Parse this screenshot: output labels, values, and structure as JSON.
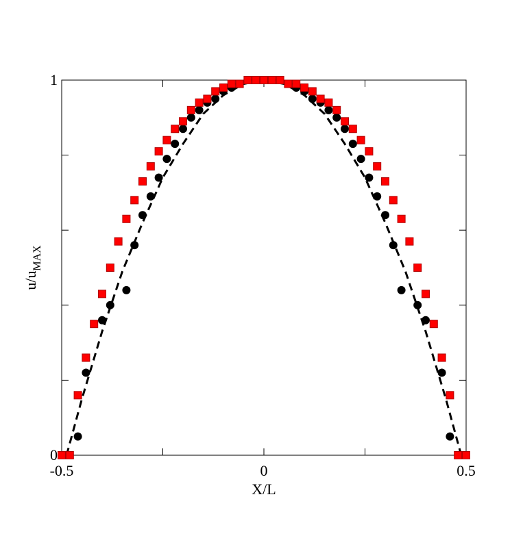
{
  "chart_data": {
    "type": "scatter",
    "xlabel": "X/L",
    "ylabel": "u/u",
    "ylabel_sub": "MAX",
    "xlim": [
      -0.5,
      0.5
    ],
    "ylim": [
      0,
      1
    ],
    "xticks": [
      -0.5,
      0,
      0.5
    ],
    "yticks": [
      0,
      1
    ],
    "xminor_ticks": [
      -0.25,
      0.25
    ],
    "yminor_ticks": [
      0.2,
      0.4,
      0.6,
      0.8
    ],
    "grid": false,
    "series": [
      {
        "type": "line",
        "dashed": true,
        "color": "#000000",
        "x": [
          -0.488,
          -0.45,
          -0.4,
          -0.35,
          -0.3,
          -0.25,
          -0.2,
          -0.15,
          -0.1,
          -0.05,
          0,
          0.05,
          0.1,
          0.15,
          0.2,
          0.25,
          0.3,
          0.35,
          0.4,
          0.45,
          0.488
        ],
        "values": [
          0,
          0.15,
          0.33,
          0.49,
          0.62,
          0.74,
          0.83,
          0.91,
          0.96,
          0.99,
          1,
          0.99,
          0.96,
          0.91,
          0.83,
          0.74,
          0.62,
          0.49,
          0.33,
          0.15,
          0
        ]
      },
      {
        "type": "scatter",
        "marker": "circle",
        "color": "#000000",
        "x": [
          -0.46,
          -0.44,
          -0.4,
          -0.38,
          -0.34,
          -0.32,
          -0.3,
          -0.28,
          -0.26,
          -0.24,
          -0.22,
          -0.2,
          -0.18,
          -0.16,
          -0.14,
          -0.12,
          -0.1,
          -0.08,
          -0.06,
          -0.04,
          -0.02,
          0,
          0.02,
          0.04,
          0.06,
          0.08,
          0.1,
          0.12,
          0.14,
          0.16,
          0.18,
          0.2,
          0.22,
          0.24,
          0.26,
          0.28,
          0.3,
          0.32,
          0.34,
          0.38,
          0.4,
          0.44,
          0.46
        ],
        "values": [
          0.05,
          0.22,
          0.36,
          0.4,
          0.44,
          0.56,
          0.64,
          0.69,
          0.74,
          0.79,
          0.83,
          0.87,
          0.9,
          0.92,
          0.94,
          0.95,
          0.97,
          0.98,
          0.99,
          1,
          1,
          1,
          1,
          1,
          0.99,
          0.98,
          0.97,
          0.95,
          0.94,
          0.92,
          0.9,
          0.87,
          0.83,
          0.79,
          0.74,
          0.69,
          0.64,
          0.56,
          0.44,
          0.4,
          0.36,
          0.22,
          0.05
        ]
      },
      {
        "type": "scatter",
        "marker": "square",
        "color": "#ff0000",
        "x": [
          -0.5,
          -0.48,
          -0.46,
          -0.44,
          -0.42,
          -0.4,
          -0.38,
          -0.36,
          -0.34,
          -0.32,
          -0.3,
          -0.28,
          -0.26,
          -0.24,
          -0.22,
          -0.2,
          -0.18,
          -0.16,
          -0.14,
          -0.12,
          -0.1,
          -0.08,
          -0.06,
          -0.04,
          -0.02,
          0,
          0.02,
          0.04,
          0.06,
          0.08,
          0.1,
          0.12,
          0.14,
          0.16,
          0.18,
          0.2,
          0.22,
          0.24,
          0.26,
          0.28,
          0.3,
          0.32,
          0.34,
          0.36,
          0.38,
          0.4,
          0.42,
          0.44,
          0.46,
          0.48,
          0.5
        ],
        "values": [
          0,
          0,
          0.16,
          0.26,
          0.35,
          0.43,
          0.5,
          0.57,
          0.63,
          0.68,
          0.73,
          0.77,
          0.81,
          0.84,
          0.87,
          0.89,
          0.92,
          0.94,
          0.95,
          0.97,
          0.98,
          0.99,
          0.99,
          1,
          1,
          1,
          1,
          1,
          0.99,
          0.99,
          0.98,
          0.97,
          0.95,
          0.94,
          0.92,
          0.89,
          0.87,
          0.84,
          0.81,
          0.77,
          0.73,
          0.68,
          0.63,
          0.57,
          0.5,
          0.43,
          0.35,
          0.26,
          0.16,
          0,
          0
        ]
      }
    ]
  }
}
